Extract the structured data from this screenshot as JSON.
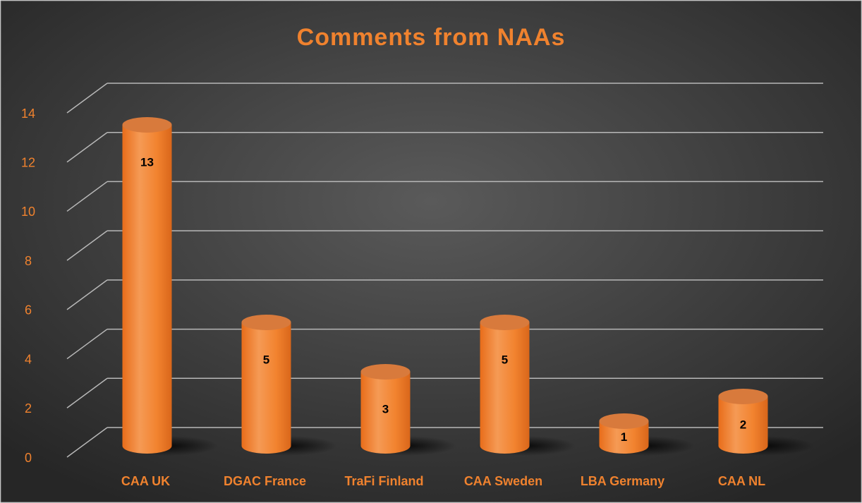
{
  "chart_data": {
    "type": "bar",
    "title": "Comments from NAAs",
    "categories": [
      "CAA UK",
      "DGAC France",
      "TraFi Finland",
      "CAA Sweden",
      "LBA Germany",
      "CAA NL"
    ],
    "values": [
      13,
      5,
      3,
      5,
      1,
      2
    ],
    "color": "#f07f2a",
    "ylim": [
      0,
      14
    ],
    "yticks": [
      0,
      2,
      4,
      6,
      8,
      10,
      12,
      14
    ],
    "grid": true
  }
}
